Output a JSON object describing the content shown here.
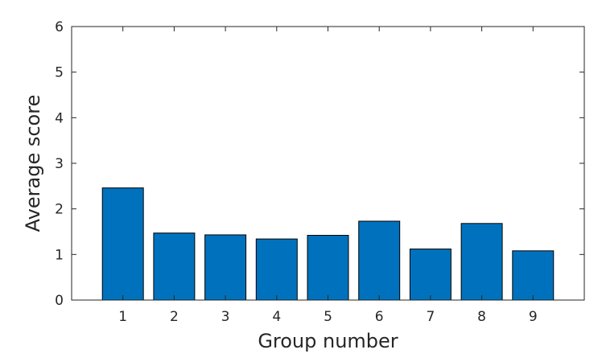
{
  "chart_data": {
    "type": "bar",
    "title": "",
    "xlabel": "Group number",
    "ylabel": "Average score",
    "categories": [
      "1",
      "2",
      "3",
      "4",
      "5",
      "6",
      "7",
      "8",
      "9"
    ],
    "values": [
      2.46,
      1.47,
      1.43,
      1.34,
      1.42,
      1.73,
      1.12,
      1.68,
      1.08
    ],
    "ylim": [
      0,
      6
    ],
    "yticks": [
      "0",
      "1",
      "2",
      "3",
      "4",
      "5",
      "6"
    ],
    "xlim": [
      0,
      10
    ],
    "grid": false,
    "legend": "none",
    "bar_color": "#0072BD",
    "edge_color": "#000000"
  }
}
